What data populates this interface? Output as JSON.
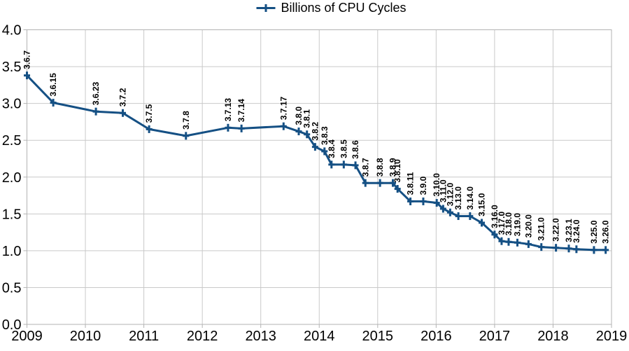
{
  "colors": {
    "series": "#155084",
    "grid": "#c9c9c9",
    "axis": "#b3b3b3",
    "text": "#000000",
    "background": "#ffffff"
  },
  "chart_data": {
    "type": "line",
    "title": "",
    "xlabel": "",
    "ylabel": "",
    "legend_position": "top-center",
    "grid": true,
    "marker": "plus",
    "xlim": [
      2009,
      2019
    ],
    "ylim": [
      0.0,
      4.0
    ],
    "x_ticks": [
      2009,
      2010,
      2011,
      2012,
      2013,
      2014,
      2015,
      2016,
      2017,
      2018,
      2019
    ],
    "y_ticks": [
      0.0,
      0.5,
      1.0,
      1.5,
      2.0,
      2.5,
      3.0,
      3.5,
      4.0
    ],
    "series": [
      {
        "name": "Billions of CPU Cycles",
        "points": [
          {
            "label": "3.6.7",
            "x": 2009.0,
            "y": 3.38
          },
          {
            "label": "3.6.15",
            "x": 2009.45,
            "y": 3.01
          },
          {
            "label": "3.6.23",
            "x": 2010.18,
            "y": 2.89
          },
          {
            "label": "3.7.2",
            "x": 2010.64,
            "y": 2.87
          },
          {
            "label": "3.7.5",
            "x": 2011.09,
            "y": 2.65
          },
          {
            "label": "3.7.8",
            "x": 2011.72,
            "y": 2.56
          },
          {
            "label": "3.7.13",
            "x": 2012.44,
            "y": 2.67
          },
          {
            "label": "3.7.14",
            "x": 2012.67,
            "y": 2.66
          },
          {
            "label": "3.7.17",
            "x": 2013.39,
            "y": 2.69
          },
          {
            "label": "3.8.0",
            "x": 2013.65,
            "y": 2.62
          },
          {
            "label": "3.8.1",
            "x": 2013.79,
            "y": 2.58
          },
          {
            "label": "3.8.2",
            "x": 2013.93,
            "y": 2.41
          },
          {
            "label": "3.8.3",
            "x": 2014.09,
            "y": 2.35
          },
          {
            "label": "3.8.4",
            "x": 2014.21,
            "y": 2.17
          },
          {
            "label": "3.8.5",
            "x": 2014.42,
            "y": 2.17
          },
          {
            "label": "3.8.6",
            "x": 2014.62,
            "y": 2.16
          },
          {
            "label": "3.8.7",
            "x": 2014.79,
            "y": 1.92
          },
          {
            "label": "3.8.8",
            "x": 2015.04,
            "y": 1.92
          },
          {
            "label": "3.8.9",
            "x": 2015.26,
            "y": 1.92
          },
          {
            "label": "3.8.10",
            "x": 2015.34,
            "y": 1.84
          },
          {
            "label": "3.8.11",
            "x": 2015.56,
            "y": 1.67
          },
          {
            "label": "3.9.0",
            "x": 2015.78,
            "y": 1.67
          },
          {
            "label": "3.10.0",
            "x": 2016.01,
            "y": 1.65
          },
          {
            "label": "3.11.0",
            "x": 2016.12,
            "y": 1.57
          },
          {
            "label": "3.12.0",
            "x": 2016.24,
            "y": 1.52
          },
          {
            "label": "3.13.0",
            "x": 2016.38,
            "y": 1.47
          },
          {
            "label": "3.14.0",
            "x": 2016.58,
            "y": 1.47
          },
          {
            "label": "3.15.0",
            "x": 2016.78,
            "y": 1.38
          },
          {
            "label": "3.16.0",
            "x": 2017.0,
            "y": 1.22
          },
          {
            "label": "3.17.0",
            "x": 2017.12,
            "y": 1.13
          },
          {
            "label": "3.18.0",
            "x": 2017.24,
            "y": 1.12
          },
          {
            "label": "3.19.0",
            "x": 2017.39,
            "y": 1.11
          },
          {
            "label": "3.20.0",
            "x": 2017.58,
            "y": 1.09
          },
          {
            "label": "3.21.0",
            "x": 2017.8,
            "y": 1.05
          },
          {
            "label": "3.22.0",
            "x": 2018.05,
            "y": 1.04
          },
          {
            "label": "3.23.1",
            "x": 2018.27,
            "y": 1.03
          },
          {
            "label": "3.24.0",
            "x": 2018.4,
            "y": 1.02
          },
          {
            "label": "3.25.0",
            "x": 2018.7,
            "y": 1.01
          },
          {
            "label": "3.26.0",
            "x": 2018.9,
            "y": 1.01
          }
        ]
      }
    ]
  }
}
